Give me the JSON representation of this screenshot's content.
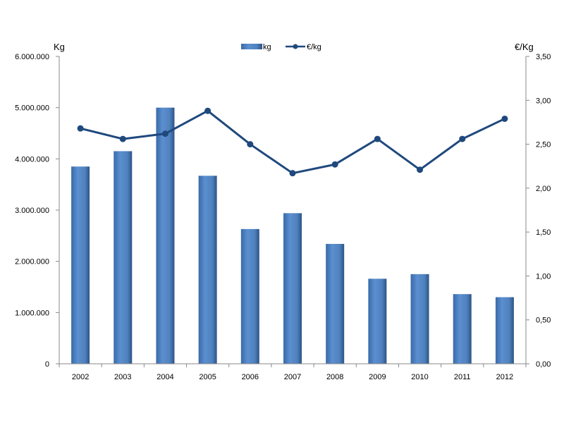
{
  "chart_data": {
    "type": "bar",
    "categories": [
      "2002",
      "2003",
      "2004",
      "2005",
      "2006",
      "2007",
      "2008",
      "2009",
      "2010",
      "2011",
      "2012"
    ],
    "series": [
      {
        "name": "kg",
        "type": "bar",
        "axis": "left",
        "color": "#4f81bd",
        "values": [
          3850000,
          4150000,
          5000000,
          3670000,
          2630000,
          2940000,
          2340000,
          1660000,
          1750000,
          1360000,
          1300000
        ]
      },
      {
        "name": "€/kg",
        "type": "line",
        "axis": "right",
        "color": "#1f497d",
        "values": [
          2.68,
          2.56,
          2.62,
          2.88,
          2.5,
          2.17,
          2.27,
          2.56,
          2.21,
          2.56,
          2.79
        ]
      }
    ],
    "y_left": {
      "label": "Kg",
      "range": [
        0,
        6000000
      ],
      "ticks": [
        "0",
        "1.000.000",
        "2.000.000",
        "3.000.000",
        "4.000.000",
        "5.000.000",
        "6.000.000"
      ]
    },
    "y_right": {
      "label": "€/Kg",
      "range": [
        0,
        3.5
      ],
      "ticks": [
        "0,00",
        "0,50",
        "1,00",
        "1,50",
        "2,00",
        "2,50",
        "3,00",
        "3,50"
      ]
    },
    "legend_position": "top-center",
    "grid": false
  }
}
